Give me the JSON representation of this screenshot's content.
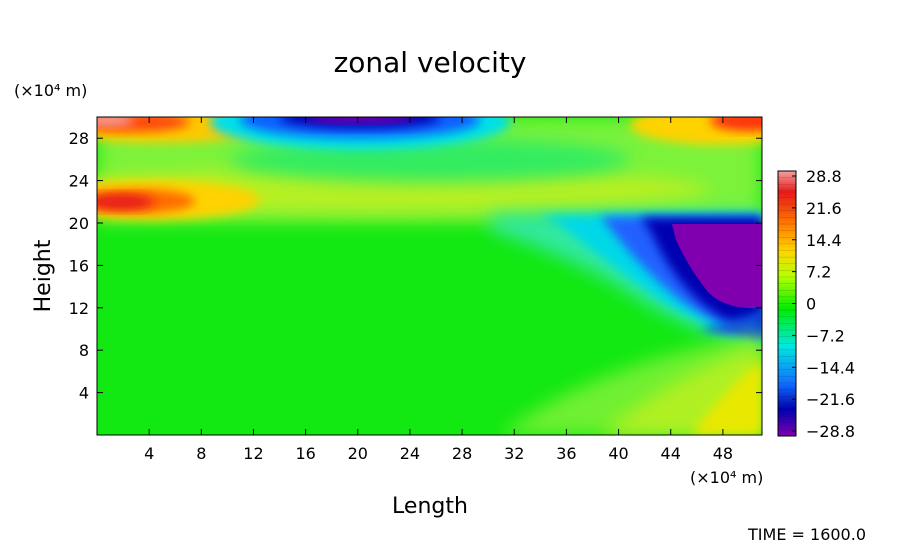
{
  "chart_data": {
    "type": "heatmap",
    "title": "zonal velocity",
    "xlabel": "Length",
    "ylabel": "Height",
    "x_unit": "(×10⁴ m)",
    "y_unit": "(×10⁴ m)",
    "x_ticks": [
      4,
      8,
      12,
      16,
      20,
      24,
      28,
      32,
      36,
      40,
      44,
      48
    ],
    "y_ticks": [
      4,
      8,
      12,
      16,
      20,
      24,
      28
    ],
    "xlim": [
      0,
      51
    ],
    "ylim": [
      0,
      30
    ],
    "colorbar": {
      "ticks": [
        "28.8",
        "21.6",
        "14.4",
        "7.2",
        "0",
        "−7.2",
        "−14.4",
        "−21.6",
        "−28.8"
      ],
      "range": [
        -28.8,
        28.8
      ]
    },
    "time_label": "TIME = 1600.0",
    "features": [
      {
        "x": [
          0,
          12
        ],
        "y": [
          28,
          30
        ],
        "value": 28.8
      },
      {
        "x": [
          0,
          10
        ],
        "y": [
          20.5,
          23.5
        ],
        "value": 24
      },
      {
        "x": [
          14,
          30
        ],
        "y": [
          27.5,
          30
        ],
        "value": -28.8
      },
      {
        "x": [
          44,
          51
        ],
        "y": [
          28,
          30
        ],
        "value": 22
      },
      {
        "x": [
          42,
          51
        ],
        "y": [
          9,
          20
        ],
        "value": -28.8
      },
      {
        "x": [
          44,
          51
        ],
        "y": [
          0,
          8
        ],
        "value": 10
      }
    ]
  }
}
